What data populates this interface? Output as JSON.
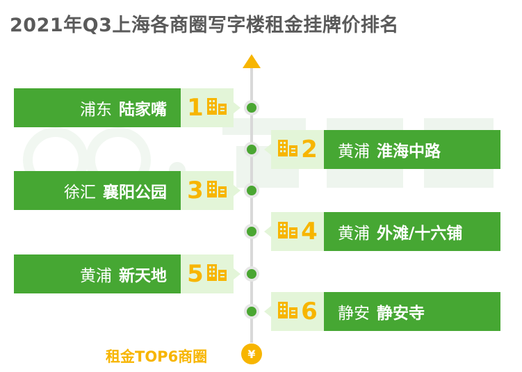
{
  "title": "2021年Q3上海各商圈写字楼租金挂牌价排名",
  "watermark": "58安居客",
  "colors": {
    "green": "#46a733",
    "light_green": "#e3f5d8",
    "gold": "#f7b500"
  },
  "rankings": [
    {
      "rank": "1",
      "district": "浦东",
      "area": "陆家嘴",
      "side": "left"
    },
    {
      "rank": "2",
      "district": "黄浦",
      "area": "淮海中路",
      "side": "right"
    },
    {
      "rank": "3",
      "district": "徐汇",
      "area": "襄阳公园",
      "side": "left"
    },
    {
      "rank": "4",
      "district": "黄浦",
      "area": "外滩/十六铺",
      "side": "right"
    },
    {
      "rank": "5",
      "district": "黄浦",
      "area": "新天地",
      "side": "left"
    },
    {
      "rank": "6",
      "district": "静安",
      "area": "静安寺",
      "side": "right"
    }
  ],
  "footer": {
    "label": "租金TOP6商圈",
    "icon": "yen-coin-icon",
    "icon_text": "¥"
  }
}
